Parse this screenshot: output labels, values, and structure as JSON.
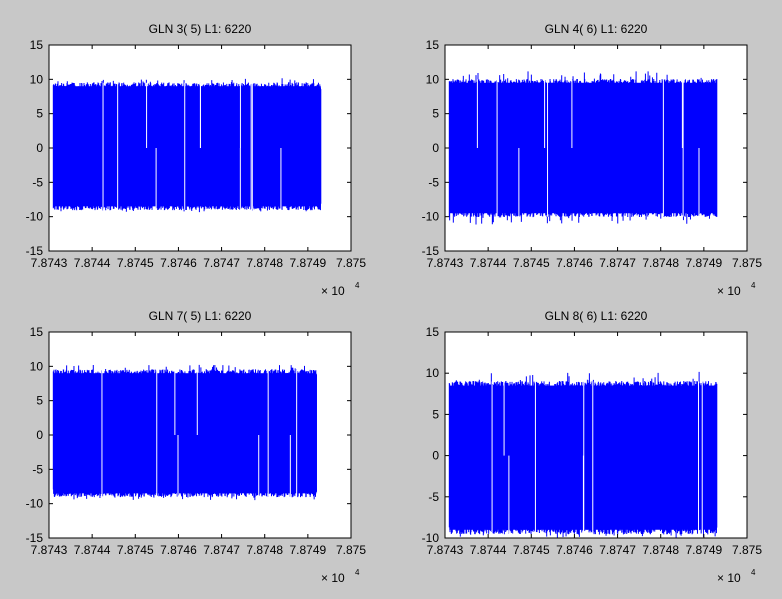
{
  "window": {
    "background": "#c8c8c8"
  },
  "chart_data": [
    {
      "type": "line",
      "title": "GLN  3( 5) L1: 6220",
      "xlabel": "",
      "ylabel": "",
      "xlim": [
        78743,
        78750
      ],
      "ylim": [
        -15,
        15
      ],
      "x_ticks": [
        "7.8743",
        "7.8744",
        "7.8745",
        "7.8746",
        "7.8747",
        "7.8748",
        "7.8749",
        "7.875"
      ],
      "y_ticks": [
        "15",
        "10",
        "5",
        "0",
        "-5",
        "-10",
        "-15"
      ],
      "x_multiplier": "× 10",
      "x_multiplier_exp": "4",
      "series": [
        {
          "color": "#0000ff",
          "x_start": 78743.1,
          "x_end": 78749.3,
          "upper": 9,
          "lower": -8.5,
          "upper_peak": 10.2,
          "lower_peak": -9.4
        }
      ]
    },
    {
      "type": "line",
      "title": "GLN  4( 6) L1: 6220",
      "xlabel": "",
      "ylabel": "",
      "xlim": [
        78743,
        78750
      ],
      "ylim": [
        -15,
        15
      ],
      "x_ticks": [
        "7.8743",
        "7.8744",
        "7.8745",
        "7.8746",
        "7.8747",
        "7.8748",
        "7.8749",
        "7.875"
      ],
      "y_ticks": [
        "15",
        "10",
        "5",
        "0",
        "-5",
        "-10",
        "-15"
      ],
      "x_multiplier": "× 10",
      "x_multiplier_exp": "4",
      "series": [
        {
          "color": "#0000ff",
          "x_start": 78743.1,
          "x_end": 78749.3,
          "upper": 9.5,
          "lower": -9.5,
          "upper_peak": 11.2,
          "lower_peak": -11.2
        }
      ]
    },
    {
      "type": "line",
      "title": "GLN  7( 5) L1: 6220",
      "xlabel": "",
      "ylabel": "",
      "xlim": [
        78743,
        78750
      ],
      "ylim": [
        -15,
        15
      ],
      "x_ticks": [
        "7.8743",
        "7.8744",
        "7.8745",
        "7.8746",
        "7.8747",
        "7.8748",
        "7.8749",
        "7.875"
      ],
      "y_ticks": [
        "15",
        "10",
        "5",
        "0",
        "-5",
        "-10",
        "-15"
      ],
      "x_multiplier": "× 10",
      "x_multiplier_exp": "4",
      "series": [
        {
          "color": "#0000ff",
          "x_start": 78743.1,
          "x_end": 78749.2,
          "upper": 9,
          "lower": -8.5,
          "upper_peak": 10.3,
          "lower_peak": -9.5
        }
      ]
    },
    {
      "type": "line",
      "title": "GLN  8( 6) L1: 6220",
      "xlabel": "",
      "ylabel": "",
      "xlim": [
        78743,
        78750
      ],
      "ylim": [
        -10,
        15
      ],
      "x_ticks": [
        "7.8743",
        "7.8744",
        "7.8745",
        "7.8746",
        "7.8747",
        "7.8748",
        "7.8749",
        "7.875"
      ],
      "y_ticks": [
        "15",
        "10",
        "5",
        "0",
        "-5",
        "-10"
      ],
      "x_multiplier": "× 10",
      "x_multiplier_exp": "4",
      "series": [
        {
          "color": "#0000ff",
          "x_start": 78743.1,
          "x_end": 78749.3,
          "upper": 8.5,
          "lower": -9,
          "upper_peak": 10.2,
          "lower_peak": -10
        }
      ]
    }
  ]
}
